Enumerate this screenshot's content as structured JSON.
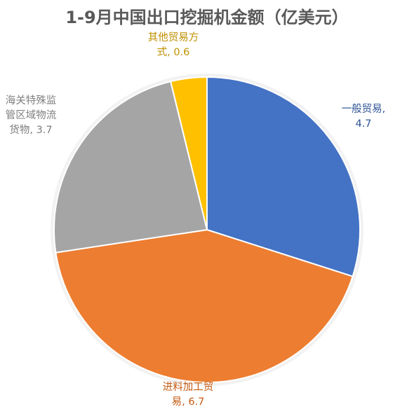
{
  "chart_data": {
    "type": "pie",
    "title": "1-9月中国出口挖掘机金额（亿美元）",
    "unit": "亿美元",
    "start_angle_deg": 0,
    "direction": "clockwise",
    "legend": "none",
    "slices": [
      {
        "name": "一般贸易",
        "value": 4.7,
        "color": "#4472C4",
        "label_lines": [
          "一般贸易,",
          "4.7"
        ],
        "label_color": "#2F5597"
      },
      {
        "name": "进料加工贸易",
        "value": 6.7,
        "color": "#ED7D31",
        "label_lines": [
          "进料加工贸",
          "易, 6.7"
        ],
        "label_color": "#C55A11"
      },
      {
        "name": "海关特殊监管区域物流货物",
        "value": 3.7,
        "color": "#A5A5A5",
        "label_lines": [
          "海关特殊监",
          "管区域物流",
          "货物, 3.7"
        ],
        "label_color": "#7F7F7F"
      },
      {
        "name": "其他贸易方式",
        "value": 0.6,
        "color": "#FFC000",
        "label_lines": [
          "其他贸易方",
          "式, 0.6"
        ],
        "label_color": "#BF9000"
      }
    ]
  }
}
